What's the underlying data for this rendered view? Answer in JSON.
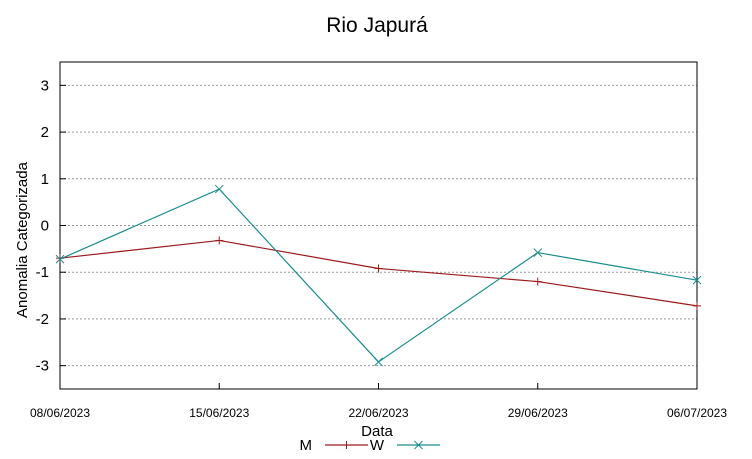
{
  "chart_data": {
    "type": "line",
    "title": "Rio Japurá",
    "xlabel": "Data",
    "ylabel": "Anomalia Categorizada",
    "x": [
      "08/06/2023",
      "15/06/2023",
      "22/06/2023",
      "29/06/2023",
      "06/07/2023"
    ],
    "ylim": [
      -3.5,
      3.5
    ],
    "yticks": [
      3,
      2,
      1,
      0,
      -1,
      -2,
      -3
    ],
    "grid": true,
    "legend_position": "bottom",
    "series": [
      {
        "name": "M",
        "color": "#9b1b1b",
        "marker": "plus",
        "values": [
          -0.7,
          -0.32,
          -0.92,
          -1.2,
          -1.72
        ]
      },
      {
        "name": "W",
        "color": "#1a8c8c",
        "marker": "x",
        "values": [
          -0.72,
          0.78,
          -2.92,
          -0.58,
          -1.17
        ]
      }
    ]
  }
}
